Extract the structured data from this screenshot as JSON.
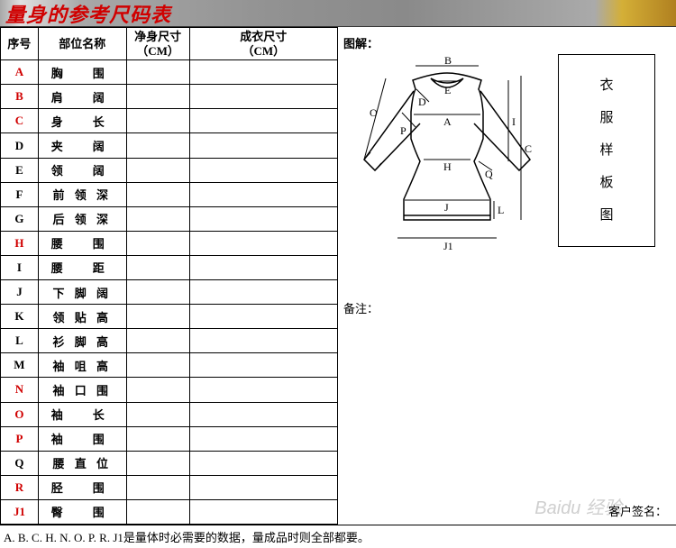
{
  "title": "量身的参考尺码表",
  "headers": {
    "idx": "序号",
    "name": "部位名称",
    "net": "净身尺寸\n（CM）",
    "prod": "成衣尺寸\n（CM）"
  },
  "rows": [
    {
      "idx": "A",
      "name": "胸　围",
      "red": true,
      "wide": true
    },
    {
      "idx": "B",
      "name": "肩　阔",
      "red": true,
      "wide": true
    },
    {
      "idx": "C",
      "name": "身　长",
      "red": true,
      "wide": true
    },
    {
      "idx": "D",
      "name": "夹　阔",
      "red": false,
      "wide": true
    },
    {
      "idx": "E",
      "name": "领　阔",
      "red": false,
      "wide": true
    },
    {
      "idx": "F",
      "name": "前 领 深",
      "red": false,
      "wide": false
    },
    {
      "idx": "G",
      "name": "后 领 深",
      "red": false,
      "wide": false
    },
    {
      "idx": "H",
      "name": "腰　围",
      "red": true,
      "wide": true
    },
    {
      "idx": "I",
      "name": "腰　距",
      "red": false,
      "wide": true
    },
    {
      "idx": "J",
      "name": "下 脚 阔",
      "red": false,
      "wide": false
    },
    {
      "idx": "K",
      "name": "领 贴 高",
      "red": false,
      "wide": false
    },
    {
      "idx": "L",
      "name": "衫 脚 高",
      "red": false,
      "wide": false
    },
    {
      "idx": "M",
      "name": "袖 咀 高",
      "red": false,
      "wide": false
    },
    {
      "idx": "N",
      "name": "袖 口 围",
      "red": true,
      "wide": false
    },
    {
      "idx": "O",
      "name": "袖　长",
      "red": true,
      "wide": true
    },
    {
      "idx": "P",
      "name": "袖　围",
      "red": true,
      "wide": true
    },
    {
      "idx": "Q",
      "name": "腰 直 位",
      "red": false,
      "wide": false
    },
    {
      "idx": "R",
      "name": "胫　围",
      "red": true,
      "wide": true
    },
    {
      "idx": "J1",
      "name": "臀　围",
      "red": true,
      "wide": true
    }
  ],
  "labels": {
    "diagram": "图解：",
    "template": "衣\n服\n样\n板\n图",
    "note": "备注：",
    "signature": "客户签名：",
    "watermark": "Baidu 经验"
  },
  "footnote": "A. B. C. H. N. O. P. R. J1是量体时必需要的数据，量成品时则全部都要。",
  "colors": {
    "title": "#d00000",
    "red_idx": "#d00000",
    "border": "#000000",
    "bg": "#ffffff"
  },
  "diagram_letters": [
    "A",
    "B",
    "C",
    "D",
    "E",
    "H",
    "I",
    "J",
    "J1",
    "L",
    "O",
    "P",
    "Q"
  ]
}
